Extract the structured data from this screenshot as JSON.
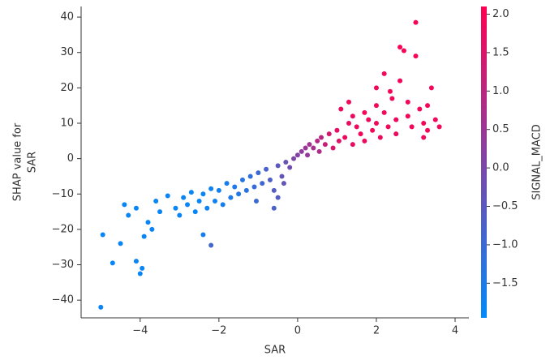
{
  "chart_data": {
    "type": "scatter",
    "x_label": "SAR",
    "y_label": [
      "SHAP value for",
      "SAR"
    ],
    "xlim": [
      -5.5,
      4.35
    ],
    "ylim": [
      -45,
      43
    ],
    "xticks": [
      {
        "value": -4,
        "label": "−4"
      },
      {
        "value": -2,
        "label": "−2"
      },
      0,
      2,
      4
    ],
    "yticks": [
      {
        "value": -40,
        "label": "−40"
      },
      {
        "value": -30,
        "label": "−30"
      },
      {
        "value": -20,
        "label": "−20"
      },
      {
        "value": -10,
        "label": "−10"
      },
      0,
      10,
      20,
      30,
      40
    ],
    "colorbar": {
      "label": "SIGNAL_MACD",
      "colors": [
        "#008afb",
        "#ff0052"
      ],
      "lim": [
        -1.95,
        2.1
      ],
      "ticks": [
        {
          "value": -1.5,
          "label": "−1.5"
        },
        {
          "value": -1.0,
          "label": "−1.0"
        },
        {
          "value": -0.5,
          "label": "−0.5"
        },
        {
          "value": 0.0,
          "label": "0.0"
        },
        {
          "value": 0.5,
          "label": "0.5"
        },
        {
          "value": 1.0,
          "label": "1.0"
        },
        {
          "value": 1.5,
          "label": "1.5"
        },
        {
          "value": 2.0,
          "label": "2.0"
        }
      ]
    },
    "x": [
      -5.0,
      -4.95,
      -4.7,
      -4.5,
      -4.4,
      -4.3,
      -4.1,
      -4.0,
      -3.95,
      -3.9,
      -4.1,
      -3.8,
      -3.7,
      -3.6,
      -3.5,
      -3.3,
      -3.1,
      -3.0,
      -2.9,
      -2.8,
      -2.7,
      -2.6,
      -2.5,
      -2.4,
      -2.3,
      -2.2,
      -2.4,
      -2.2,
      -2.1,
      -2.0,
      -1.9,
      -1.8,
      -1.7,
      -1.6,
      -1.5,
      -1.4,
      -1.3,
      -1.2,
      -1.1,
      -1.0,
      -0.9,
      -0.8,
      -0.7,
      -0.6,
      -0.5,
      -0.4,
      -0.3,
      -0.2,
      -0.1,
      0.0,
      0.1,
      0.2,
      0.3,
      0.4,
      0.5,
      0.6,
      0.7,
      0.8,
      -0.5,
      -0.6,
      -1.05,
      -0.35,
      0.25,
      0.55,
      1.0,
      1.2,
      1.3,
      1.4,
      1.5,
      1.6,
      1.3,
      1.4,
      1.7,
      1.8,
      1.9,
      2.0,
      2.1,
      2.2,
      2.0,
      2.3,
      2.4,
      2.5,
      2.6,
      2.7,
      2.6,
      2.5,
      2.8,
      2.9,
      3.0,
      3.0,
      3.1,
      3.2,
      3.3,
      3.4,
      3.5,
      3.6,
      2.2,
      2.35,
      1.1,
      1.7,
      2.8,
      3.3,
      3.2,
      2.0,
      0.9,
      1.05
    ],
    "values": [
      -42,
      -21.5,
      -29.5,
      -24,
      -13,
      -16,
      -29,
      -32.5,
      -31,
      -22,
      -14,
      -18,
      -20,
      -12,
      -15,
      -10.5,
      -14,
      -16,
      -11,
      -13,
      -9.5,
      -15,
      -12,
      -10,
      -14,
      -24.5,
      -21.5,
      -8.5,
      -12,
      -9,
      -13,
      -7,
      -11,
      -8,
      -10,
      -6,
      -9,
      -5,
      -8,
      -4,
      -7,
      -3,
      -6,
      -9,
      -2,
      -5,
      -1,
      -2.5,
      0,
      1,
      2,
      3,
      4,
      3,
      5,
      6,
      4,
      7,
      -11,
      -14,
      -12,
      -7,
      1,
      2,
      8,
      6,
      10,
      4,
      9,
      7,
      16,
      12,
      5,
      11,
      8,
      10,
      6,
      13,
      20,
      9,
      17,
      11,
      31.5,
      30.5,
      22,
      7,
      12,
      9,
      38.5,
      29,
      14,
      10,
      8,
      20,
      11,
      9,
      24,
      19,
      14,
      13,
      16,
      15,
      6,
      15,
      3,
      5
    ],
    "color_values": [
      -1.8,
      -1.8,
      -1.8,
      -1.8,
      -1.8,
      -1.8,
      -1.8,
      -1.8,
      -1.8,
      -1.8,
      -1.8,
      -1.8,
      -1.8,
      -1.8,
      -1.8,
      -1.8,
      -1.8,
      -1.8,
      -1.8,
      -1.8,
      -1.8,
      -1.8,
      -1.8,
      -1.8,
      -1.7,
      -0.9,
      -1.6,
      -1.7,
      -1.7,
      -1.7,
      -1.6,
      -1.6,
      -1.5,
      -1.5,
      -1.4,
      -1.3,
      -1.3,
      -1.2,
      -1.1,
      -1.0,
      -0.9,
      -0.8,
      -0.7,
      -0.6,
      -0.5,
      -0.4,
      -0.3,
      -0.2,
      0.0,
      0.1,
      0.3,
      0.5,
      0.6,
      0.7,
      0.9,
      1.0,
      1.2,
      1.4,
      -0.6,
      -0.8,
      -1.0,
      -0.4,
      0.4,
      0.8,
      1.7,
      1.8,
      1.8,
      1.7,
      1.8,
      1.9,
      1.9,
      1.8,
      1.8,
      1.9,
      1.9,
      1.9,
      1.8,
      1.9,
      1.9,
      1.9,
      1.9,
      1.9,
      2.0,
      2.0,
      1.9,
      1.8,
      1.9,
      1.9,
      2.0,
      2.0,
      1.9,
      1.9,
      1.9,
      1.9,
      1.9,
      1.9,
      1.9,
      1.9,
      1.8,
      1.9,
      1.9,
      1.9,
      1.9,
      1.9,
      1.5,
      1.6
    ]
  }
}
